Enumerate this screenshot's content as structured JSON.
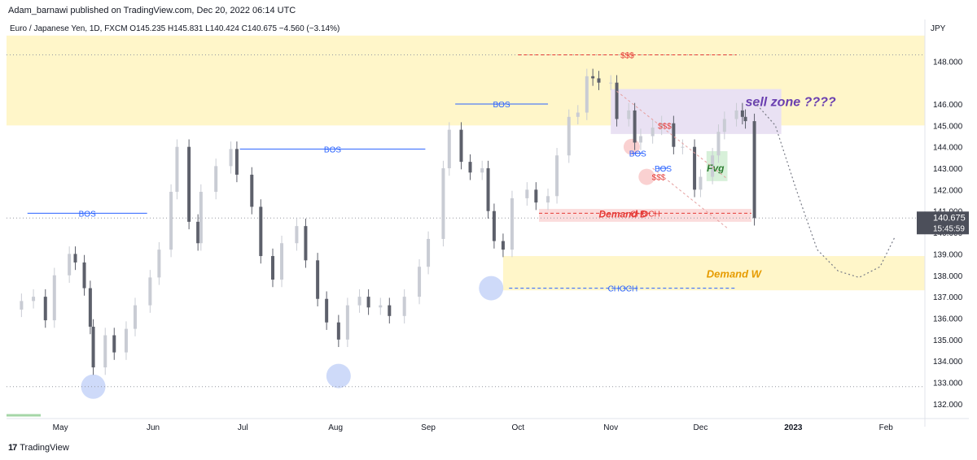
{
  "header": {
    "published_line": "Adam_barnawi published on TradingView.com, Dec 20, 2022 06:14 UTC"
  },
  "footer": {
    "brand": "TradingView"
  },
  "chart_data": {
    "type": "candlestick",
    "symbol_legend": "Euro / Japanese Yen, 1D, FXCM  O145.235  H145.831  L140.424  C140.675  −4.560 (−3.14%)",
    "currency_label": "JPY",
    "ylim": [
      131.5,
      149.8
    ],
    "y_ticks": [
      132.0,
      133.0,
      134.0,
      135.0,
      136.0,
      137.0,
      138.0,
      139.0,
      140.0,
      141.0,
      142.0,
      143.0,
      144.0,
      145.0,
      146.0,
      148.0
    ],
    "y_tick_labels": [
      "132.000",
      "133.000",
      "134.000",
      "135.000",
      "136.000",
      "137.000",
      "138.000",
      "139.000",
      "140.000",
      "141.000",
      "142.000",
      "143.000",
      "144.000",
      "145.000",
      "146.000",
      "148.000"
    ],
    "x_range": [
      "2022-04-13",
      "2023-02-14"
    ],
    "x_ticks": [
      {
        "date": "2022-05-01",
        "label": "May"
      },
      {
        "date": "2022-06-01",
        "label": "Jun"
      },
      {
        "date": "2022-07-01",
        "label": "Jul"
      },
      {
        "date": "2022-08-01",
        "label": "Aug"
      },
      {
        "date": "2022-09-01",
        "label": "Sep"
      },
      {
        "date": "2022-10-01",
        "label": "Oct"
      },
      {
        "date": "2022-11-01",
        "label": "Nov"
      },
      {
        "date": "2022-12-01",
        "label": "Dec"
      },
      {
        "date": "2023-01-01",
        "label": "2023"
      },
      {
        "date": "2023-02-01",
        "label": "Feb"
      }
    ],
    "last_price": {
      "value": 140.675,
      "label": "140.675",
      "countdown": "15:45:59"
    },
    "closes": [
      {
        "date": "2022-04-18",
        "close": 136.8
      },
      {
        "date": "2022-04-22",
        "close": 137.0
      },
      {
        "date": "2022-04-26",
        "close": 135.9
      },
      {
        "date": "2022-04-29",
        "close": 138.0
      },
      {
        "date": "2022-05-04",
        "close": 139.0
      },
      {
        "date": "2022-05-06",
        "close": 138.6
      },
      {
        "date": "2022-05-09",
        "close": 137.4
      },
      {
        "date": "2022-05-11",
        "close": 135.6
      },
      {
        "date": "2022-05-12",
        "close": 133.7
      },
      {
        "date": "2022-05-16",
        "close": 135.2
      },
      {
        "date": "2022-05-19",
        "close": 134.4
      },
      {
        "date": "2022-05-23",
        "close": 135.5
      },
      {
        "date": "2022-05-26",
        "close": 136.6
      },
      {
        "date": "2022-05-31",
        "close": 137.9
      },
      {
        "date": "2022-06-03",
        "close": 139.2
      },
      {
        "date": "2022-06-07",
        "close": 141.9
      },
      {
        "date": "2022-06-09",
        "close": 144.0
      },
      {
        "date": "2022-06-13",
        "close": 140.5
      },
      {
        "date": "2022-06-16",
        "close": 139.5
      },
      {
        "date": "2022-06-17",
        "close": 141.9
      },
      {
        "date": "2022-06-22",
        "close": 143.1
      },
      {
        "date": "2022-06-27",
        "close": 143.9
      },
      {
        "date": "2022-06-29",
        "close": 142.7
      },
      {
        "date": "2022-07-04",
        "close": 141.2
      },
      {
        "date": "2022-07-07",
        "close": 138.9
      },
      {
        "date": "2022-07-11",
        "close": 137.8
      },
      {
        "date": "2022-07-14",
        "close": 139.5
      },
      {
        "date": "2022-07-19",
        "close": 140.3
      },
      {
        "date": "2022-07-22",
        "close": 138.7
      },
      {
        "date": "2022-07-26",
        "close": 136.9
      },
      {
        "date": "2022-07-29",
        "close": 135.8
      },
      {
        "date": "2022-08-02",
        "close": 135.0
      },
      {
        "date": "2022-08-05",
        "close": 136.6
      },
      {
        "date": "2022-08-09",
        "close": 137.0
      },
      {
        "date": "2022-08-12",
        "close": 136.5
      },
      {
        "date": "2022-08-16",
        "close": 136.6
      },
      {
        "date": "2022-08-19",
        "close": 136.1
      },
      {
        "date": "2022-08-24",
        "close": 137.0
      },
      {
        "date": "2022-08-29",
        "close": 138.4
      },
      {
        "date": "2022-09-01",
        "close": 139.7
      },
      {
        "date": "2022-09-06",
        "close": 143.0
      },
      {
        "date": "2022-09-08",
        "close": 144.8
      },
      {
        "date": "2022-09-12",
        "close": 143.3
      },
      {
        "date": "2022-09-15",
        "close": 142.8
      },
      {
        "date": "2022-09-19",
        "close": 143.0
      },
      {
        "date": "2022-09-21",
        "close": 141.0
      },
      {
        "date": "2022-09-23",
        "close": 139.6
      },
      {
        "date": "2022-09-26",
        "close": 139.2
      },
      {
        "date": "2022-09-29",
        "close": 141.6
      },
      {
        "date": "2022-10-04",
        "close": 142.0
      },
      {
        "date": "2022-10-07",
        "close": 141.4
      },
      {
        "date": "2022-10-11",
        "close": 141.7
      },
      {
        "date": "2022-10-14",
        "close": 143.6
      },
      {
        "date": "2022-10-18",
        "close": 145.4
      },
      {
        "date": "2022-10-21",
        "close": 145.6
      },
      {
        "date": "2022-10-24",
        "close": 147.3
      },
      {
        "date": "2022-10-26",
        "close": 147.2
      },
      {
        "date": "2022-10-28",
        "close": 147.0
      },
      {
        "date": "2022-11-01",
        "close": 147.0
      },
      {
        "date": "2022-11-03",
        "close": 145.3
      },
      {
        "date": "2022-11-07",
        "close": 145.7
      },
      {
        "date": "2022-11-09",
        "close": 144.2
      },
      {
        "date": "2022-11-11",
        "close": 144.5
      },
      {
        "date": "2022-11-15",
        "close": 144.9
      },
      {
        "date": "2022-11-18",
        "close": 145.1
      },
      {
        "date": "2022-11-22",
        "close": 144.0
      },
      {
        "date": "2022-11-25",
        "close": 144.0
      },
      {
        "date": "2022-11-29",
        "close": 142.0
      },
      {
        "date": "2022-12-01",
        "close": 142.6
      },
      {
        "date": "2022-12-05",
        "close": 143.6
      },
      {
        "date": "2022-12-07",
        "close": 144.7
      },
      {
        "date": "2022-12-09",
        "close": 145.3
      },
      {
        "date": "2022-12-13",
        "close": 145.7
      },
      {
        "date": "2022-12-15",
        "close": 145.4
      },
      {
        "date": "2022-12-16",
        "close": 145.2
      },
      {
        "date": "2022-12-19",
        "close": 140.675
      }
    ],
    "swing_lows": [
      {
        "date": "2022-05-12",
        "value": 132.8
      },
      {
        "date": "2022-08-02",
        "value": 133.3
      },
      {
        "date": "2022-09-22",
        "value": 137.4
      }
    ],
    "zones": [
      {
        "label": "",
        "from": "2022-04-13",
        "to": "2023-02-14",
        "low": 145.0,
        "high": 149.2,
        "color": "#fff6c9"
      },
      {
        "label": "sell zone ????",
        "from": "2022-11-01",
        "to": "2022-12-28",
        "low": 144.6,
        "high": 146.7,
        "color": "#e9e1f3"
      },
      {
        "label": "Demand D",
        "from": "2022-10-08",
        "to": "2022-12-18",
        "low": 140.5,
        "high": 141.1,
        "color": "#fbdcdc"
      },
      {
        "label": "Demand W",
        "from": "2022-09-26",
        "to": "2023-02-14",
        "low": 137.3,
        "high": 138.9,
        "color": "#fff6c9"
      }
    ],
    "annotations": [
      {
        "label": "BOS",
        "from": "2022-04-20",
        "to": "2022-05-30",
        "value": 140.9,
        "color": "#2962ff"
      },
      {
        "label": "BOS",
        "from": "2022-06-30",
        "to": "2022-08-31",
        "value": 143.9,
        "color": "#2962ff"
      },
      {
        "label": "BOS",
        "from": "2022-09-10",
        "to": "2022-10-11",
        "value": 146.0,
        "color": "#2962ff"
      },
      {
        "label": "BOS",
        "from": "2022-11-08",
        "to": "2022-11-12",
        "value": 143.7,
        "color": "#2962ff"
      },
      {
        "label": "BOS",
        "from": "2022-11-17",
        "to": "2022-11-20",
        "value": 143.0,
        "color": "#2962ff"
      },
      {
        "label": "CHOCH",
        "from": "2022-09-28",
        "to": "2022-12-13",
        "value": 137.4,
        "color": "#2962ff"
      },
      {
        "label": "CHOCH",
        "from": "2022-10-08",
        "to": "2022-12-18",
        "value": 140.9,
        "color": "#e53935"
      },
      {
        "label": "$$$",
        "from": "2022-10-01",
        "to": "2022-12-13",
        "value": 148.3,
        "color": "#e53935"
      },
      {
        "label": "$$$",
        "from": "2022-11-19",
        "to": "2022-11-19",
        "value": 145.0,
        "color": "#e53935"
      },
      {
        "label": "$$$",
        "from": "2022-11-17",
        "to": "2022-11-17",
        "value": 142.6,
        "color": "#e53935"
      },
      {
        "label": "Fvg",
        "from": "2022-12-06",
        "to": "2022-12-06",
        "value": 143.0,
        "color": "#2e7d32"
      }
    ],
    "forecast_path": [
      {
        "date": "2022-12-19",
        "value": 146.1
      },
      {
        "date": "2022-12-26",
        "value": 145.0
      },
      {
        "date": "2023-01-02",
        "value": 142.0
      },
      {
        "date": "2023-01-09",
        "value": 139.2
      },
      {
        "date": "2023-01-16",
        "value": 138.2
      },
      {
        "date": "2023-01-23",
        "value": 137.9
      },
      {
        "date": "2023-01-30",
        "value": 138.4
      },
      {
        "date": "2023-02-04",
        "value": 139.8
      }
    ]
  }
}
